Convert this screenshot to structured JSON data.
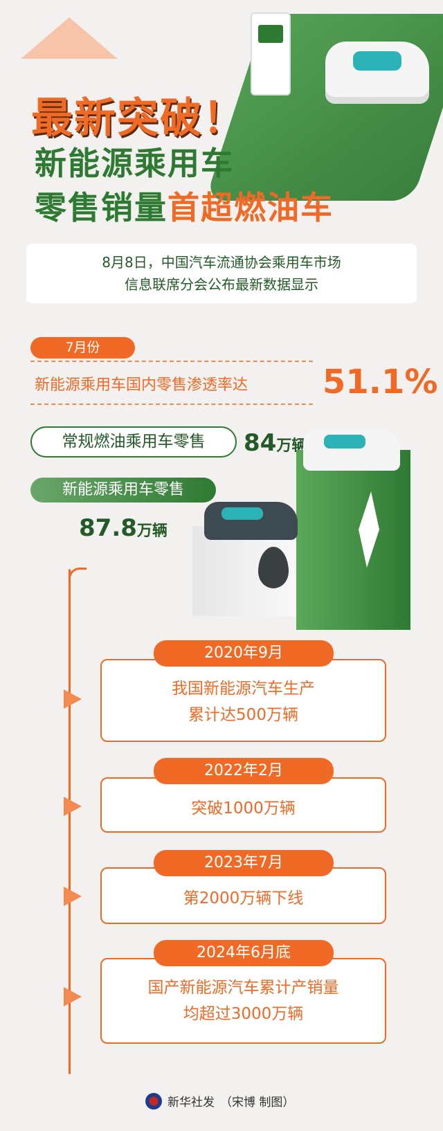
{
  "header": {
    "title_line1": "最新突破！",
    "title_line2": "新能源乘用车",
    "title_line3_green": "零售销量",
    "title_line3_orange": "首超燃油车"
  },
  "intro": {
    "line1": "8月8日，中国汽车流通协会乘用车市场",
    "line2": "信息联席分会公布最新数据显示"
  },
  "stats": {
    "month": "7月份",
    "penetration_label": "新能源乘用车国内零售渗透率达",
    "penetration_value": "51.1%",
    "fuel_label": "常规燃油乘用车零售",
    "fuel_value": "84",
    "fuel_unit": "万辆",
    "nev_label": "新能源乘用车零售",
    "nev_value": "87.8",
    "nev_unit": "万辆"
  },
  "timeline": [
    {
      "date": "2020年9月",
      "line1": "我国新能源汽车生产",
      "line2": "累计达500万辆"
    },
    {
      "date": "2022年2月",
      "line1": "突破1000万辆",
      "line2": ""
    },
    {
      "date": "2023年7月",
      "line1": "第2000万辆下线",
      "line2": ""
    },
    {
      "date": "2024年6月底",
      "line1": "国产新能源汽车累计产销量",
      "line2": "均超过3000万辆"
    }
  ],
  "footer": {
    "agency": "新华社发",
    "credit": "（宋博 制图）"
  },
  "colors": {
    "orange": "#f06a25",
    "green": "#2f7a33",
    "background": "#f3f1ef"
  },
  "icons": {
    "charger": "ev-charger-icon",
    "car": "car-icon",
    "oil": "oil-drop-icon",
    "bolt": "lightning-icon",
    "logo": "xinhua-logo"
  }
}
